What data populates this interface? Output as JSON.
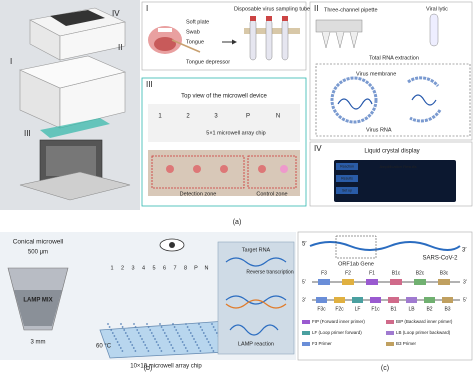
{
  "panel_a": {
    "label": "(a)",
    "device_labels": [
      "IV",
      "II",
      "I",
      "III"
    ],
    "sampling": {
      "label": "I",
      "parts": [
        "Soft plate",
        "Swab",
        "Tongue",
        "Tongue depressor"
      ],
      "tube": "Disposable virus sampling tube"
    },
    "extraction": {
      "label": "II",
      "pipette": "Three-channel pipette",
      "lytic": "Viral lytic",
      "step": "Total RNA extraction",
      "membrane": "Virus membrane",
      "rna": "Virus RNA"
    },
    "chip": {
      "label": "III",
      "title": "Top view of the microwell device",
      "wells": [
        "1",
        "2",
        "3",
        "P",
        "N"
      ],
      "chip": "5×1 microwell array chip",
      "zones": [
        "Detection zone",
        "Control zone"
      ]
    },
    "display": {
      "label": "IV",
      "title": "Liquid crystal display",
      "menu": [
        "Reaction",
        "Results",
        "Set up"
      ],
      "header": "Amplification Results"
    }
  },
  "panel_b": {
    "label": "(b)",
    "microwell": "Conical microwell",
    "diameter": "500 μm",
    "mix": "LAMP MIX",
    "depth": "3 mm",
    "columns": [
      "1",
      "2",
      "3",
      "4",
      "5",
      "6",
      "7",
      "8",
      "P",
      "N"
    ],
    "temp": "60 °C",
    "chip": "10×10 microwell array chip",
    "target": "Target RNA",
    "rt": "Reverse transcription",
    "lamp": "LAMP reaction"
  },
  "panel_c": {
    "label": "(c)",
    "ends": [
      "5′",
      "3′"
    ],
    "virus": "SARS-CoV-2",
    "gene": "ORF1ab Gene",
    "top_regions": [
      "F3",
      "F2",
      "F1",
      "B1c",
      "B2c",
      "B3c"
    ],
    "bottom_regions": [
      "F3c",
      "F2c",
      "LF",
      "F1c",
      "B1",
      "LB",
      "B2",
      "B3"
    ],
    "primers": [
      "FIP (Forward inner primer)",
      "BIP (Backward inner primer)",
      "LF (Loop primer forward)",
      "LB (Loop primer backward)",
      "F3 Primer",
      "B3 Primer"
    ]
  }
}
